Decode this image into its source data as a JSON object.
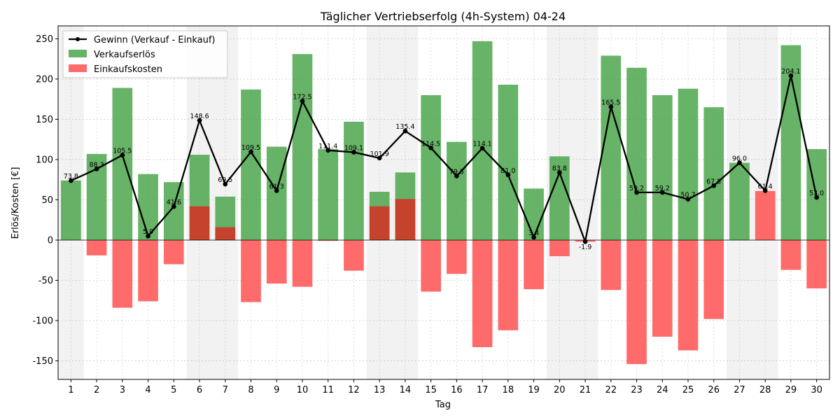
{
  "chart_data": {
    "type": "bar",
    "title": "Täglicher Vertriebserfolg (4h-System) 04-24",
    "xlabel": "Tag",
    "ylabel": "Erlös/Kosten [€]",
    "ylim": [
      -173,
      266
    ],
    "yticks": [
      -150,
      -100,
      -50,
      0,
      50,
      100,
      150,
      200,
      250
    ],
    "grid": true,
    "legend_position": "top-left",
    "categories": [
      "1",
      "2",
      "3",
      "4",
      "5",
      "6",
      "7",
      "8",
      "9",
      "10",
      "11",
      "12",
      "13",
      "14",
      "15",
      "16",
      "17",
      "18",
      "19",
      "20",
      "21",
      "22",
      "23",
      "24",
      "25",
      "26",
      "27",
      "28",
      "29",
      "30"
    ],
    "weekend_days": [
      "1",
      "6",
      "7",
      "13",
      "14",
      "20",
      "21",
      "27",
      "28"
    ],
    "series": [
      {
        "name": "Gewinn (Verkauf - Einkauf)",
        "kind": "line",
        "color": "#000000",
        "values": [
          73.8,
          88.3,
          105.5,
          5.0,
          41.6,
          148.6,
          69.5,
          109.5,
          61.3,
          172.5,
          111.4,
          109.1,
          101.9,
          135.4,
          114.5,
          79.5,
          114.1,
          81.0,
          3.4,
          83.8,
          -1.9,
          165.5,
          59.2,
          59.2,
          50.7,
          67.5,
          96.0,
          61.4,
          204.1,
          53.0
        ],
        "labels": [
          "73.8",
          "88.3",
          "105.5",
          "5.0",
          "41.6",
          "148.6",
          "69.5",
          "109.5",
          "61.3",
          "172.5",
          "111.4",
          "109.1",
          "101.9",
          "135.4",
          "114.5",
          "79.5",
          "114.1",
          "81.0",
          "3.4",
          "83.8",
          "-1.9",
          "165.5",
          "59.2",
          "59.2",
          "50.7",
          "67.5",
          "96.0",
          "61.4",
          "204.1",
          "53.0"
        ]
      },
      {
        "name": "Verkaufserlös",
        "kind": "bar",
        "color": "#4ca64c",
        "values": [
          74,
          107,
          189,
          82,
          72,
          106,
          54,
          187,
          116,
          231,
          113,
          147,
          60,
          84,
          180,
          122,
          247,
          193,
          64,
          104,
          0,
          229,
          214,
          180,
          188,
          165,
          96,
          0,
          242,
          113
        ]
      },
      {
        "name": "Einkaufskosten",
        "kind": "bar",
        "color": "#ff5a5a",
        "values": [
          0,
          -19,
          -84,
          -76,
          -30,
          42,
          16,
          -77,
          -54,
          -58,
          -1,
          -38,
          42,
          51,
          -64,
          -42,
          -133,
          -112,
          -61,
          -20,
          -2,
          -62,
          -154,
          -120,
          -137,
          -98,
          0,
          61,
          -37,
          -60
        ]
      }
    ]
  }
}
